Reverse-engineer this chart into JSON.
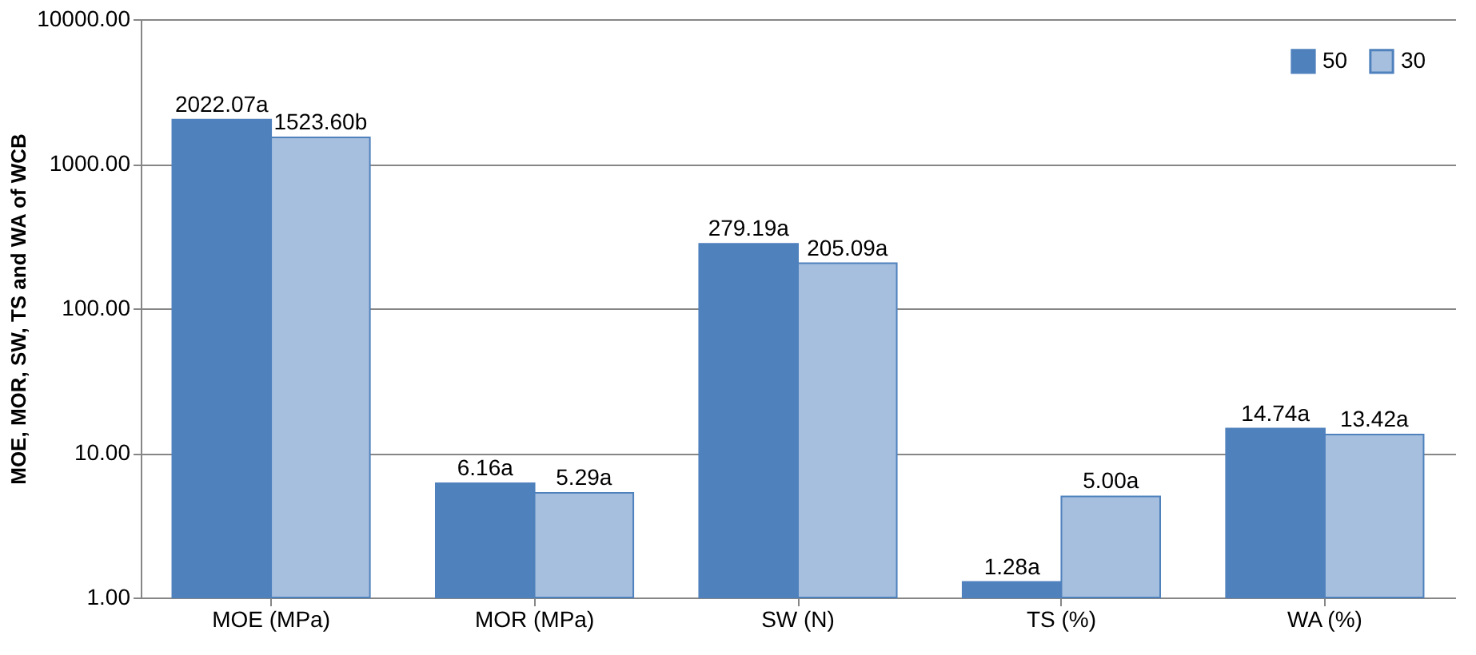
{
  "chart_data": {
    "type": "bar",
    "ylabel": "MOE, MOR, SW, TS and WA of WCB",
    "categories": [
      "MOE (MPa)",
      "MOR (MPa)",
      "SW (N)",
      "TS (%)",
      "WA (%)"
    ],
    "series": [
      {
        "name": "50",
        "color": "#4f81bd",
        "values": [
          2022.07,
          6.16,
          279.19,
          1.28,
          14.74
        ],
        "value_labels": [
          "2022.07a",
          "6.16a",
          "279.19a",
          "1.28a",
          "14.74a"
        ]
      },
      {
        "name": "30",
        "color": "#a7bfde",
        "values": [
          1523.6,
          5.29,
          205.09,
          5.0,
          13.42
        ],
        "value_labels": [
          "1523.60b",
          "5.29a",
          "205.09a",
          "5.00a",
          "13.42a"
        ]
      }
    ],
    "log": "y",
    "ylim": [
      1,
      10000
    ],
    "yticks": [
      {
        "value": 1,
        "label": "1.00"
      },
      {
        "value": 10,
        "label": "10.00"
      },
      {
        "value": 100,
        "label": "100.00"
      },
      {
        "value": 1000,
        "label": "1000.00"
      },
      {
        "value": 10000,
        "label": "10000.00"
      }
    ],
    "grid": "y",
    "legend": "top right"
  }
}
